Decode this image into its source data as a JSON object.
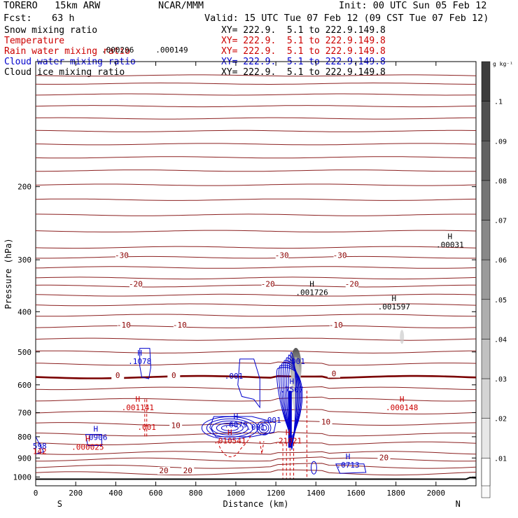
{
  "header": {
    "model": "TORERO   15km ARW",
    "center": "NCAR/MMM",
    "init": "Init: 00 UTC Sun 05 Feb 12",
    "fcst_label": "Fcst:",
    "fcst_value": "63 h",
    "valid": "Valid: 15 UTC Tue 07 Feb 12 (09 CST Tue 07 Feb 12)"
  },
  "legend": [
    {
      "name": "Snow mixing ratio",
      "xy": "XY= 222.9.  5.1 to 222.9.149.8",
      "color": "#000000"
    },
    {
      "name": "Temperature",
      "xy": "XY= 222.9.  5.1 to 222.9.149.8",
      "color": "#cc0000"
    },
    {
      "name": "Rain water mixing ratio",
      "xy": "XY= 222.9.  5.1 to 222.9.149.8",
      "color": "#cc0000"
    },
    {
      "name": "Cloud water mixing ratio",
      "xy": "XY= 222.9.  5.1 to 222.9.149.8",
      "color": "#0000cc"
    },
    {
      "name": "Cloud ice mixing ratio",
      "xy": "XY= 222.9.  5.1 to 222.9.149.8",
      "color": "#000000"
    }
  ],
  "colorbar": {
    "unit": "g kg⁻¹",
    "labels": [
      ".1",
      ".09",
      ".08",
      ".07",
      ".06",
      ".05",
      ".04",
      ".03",
      ".02",
      ".01"
    ]
  },
  "chart_data": {
    "type": "contour",
    "xlabel": "Distance (km)",
    "ylabel": "Pressure (hPa)",
    "xlim": [
      0,
      2200
    ],
    "ylim": [
      1050,
      100
    ],
    "y_scale": "log",
    "x_ticks": [
      0,
      200,
      400,
      600,
      800,
      1000,
      1200,
      1400,
      1600,
      1800,
      2000
    ],
    "y_ticks": [
      200,
      300,
      400,
      500,
      600,
      700,
      800,
      900,
      1000
    ],
    "x_end_labels": [
      "S",
      "N"
    ],
    "temperature_labels": [
      {
        "text": "-30",
        "x": 430,
        "p": 296
      },
      {
        "text": "-30",
        "x": 1230,
        "p": 296
      },
      {
        "text": "-30",
        "x": 1520,
        "p": 296
      },
      {
        "text": "-20",
        "x": 500,
        "p": 347
      },
      {
        "text": "-20",
        "x": 1160,
        "p": 347
      },
      {
        "text": "-20",
        "x": 1580,
        "p": 347
      },
      {
        "text": "-10",
        "x": 440,
        "p": 435
      },
      {
        "text": "-10",
        "x": 720,
        "p": 435
      },
      {
        "text": "-10",
        "x": 1500,
        "p": 435
      },
      {
        "text": "0",
        "x": 410,
        "p": 575
      },
      {
        "text": "0",
        "x": 690,
        "p": 575
      },
      {
        "text": "0",
        "x": 1490,
        "p": 570
      },
      {
        "text": "10",
        "x": 700,
        "p": 760
      },
      {
        "text": "10",
        "x": 1450,
        "p": 745
      },
      {
        "text": "20",
        "x": 1740,
        "p": 908
      },
      {
        "text": "20",
        "x": 640,
        "p": 975
      },
      {
        "text": "20",
        "x": 760,
        "p": 975
      }
    ],
    "extrema": [
      {
        "mark": "H",
        "value": ".001726",
        "x": 1380,
        "p": 365,
        "color": "#000000"
      },
      {
        "mark": "H",
        "value": ".001597",
        "x": 1790,
        "p": 395,
        "color": "#000000"
      },
      {
        "mark": "H",
        "value": ".00031",
        "x": 2070,
        "p": 280,
        "color": "#000000"
      },
      {
        "mark": "H",
        "value": ".1078",
        "x": 520,
        "p": 535,
        "color": "#0000cc"
      },
      {
        "mark": "",
        "value": ".001",
        "x": 990,
        "p": 580,
        "color": "#0000cc"
      },
      {
        "mark": "",
        "value": ".001",
        "x": 1300,
        "p": 535,
        "color": "#0000cc"
      },
      {
        "mark": "H",
        "value": ".7507",
        "x": 1280,
        "p": 625,
        "color": "#0000cc"
      },
      {
        "mark": "",
        "value": ".001",
        "x": 1180,
        "p": 740,
        "color": "#0000cc"
      },
      {
        "mark": "H",
        "value": ".6079",
        "x": 1000,
        "p": 760,
        "color": "#0000cc"
      },
      {
        "mark": "",
        "value": ".001",
        "x": 1100,
        "p": 770,
        "color": "#0000cc"
      },
      {
        "mark": "H",
        "value": ".0906",
        "x": 300,
        "p": 815,
        "color": "#0000cc"
      },
      {
        "mark": "H",
        "value": ".0713",
        "x": 1560,
        "p": 950,
        "color": "#0000cc"
      },
      {
        "mark": "",
        "value": "598",
        "x": 20,
        "p": 855,
        "color": "#0000cc"
      },
      {
        "mark": "H",
        "value": ".001141",
        "x": 510,
        "p": 690,
        "color": "#cc0000"
      },
      {
        "mark": "",
        "value": ".001",
        "x": 555,
        "p": 770,
        "color": "#cc0000"
      },
      {
        "mark": "H",
        "value": ".000148",
        "x": 1830,
        "p": 690,
        "color": "#cc0000"
      },
      {
        "mark": "H",
        "value": ".010541",
        "x": 970,
        "p": 830,
        "color": "#cc0000"
      },
      {
        "mark": "H",
        "value": ".21021",
        "x": 1260,
        "p": 830,
        "color": "#cc0000"
      },
      {
        "mark": "H",
        "value": ".000025",
        "x": 260,
        "p": 860,
        "color": "#cc0000"
      },
      {
        "mark": "",
        "value": "142",
        "x": 20,
        "p": 880,
        "color": "#cc0000"
      }
    ],
    "top_labels": [
      {
        "text": ".000296",
        "x": 410,
        "p": 95
      },
      {
        "text": ".000149",
        "x": 680,
        "p": 95
      }
    ],
    "snow_mixing_ratio_colorbar_range": [
      0.01,
      0.1
    ]
  }
}
